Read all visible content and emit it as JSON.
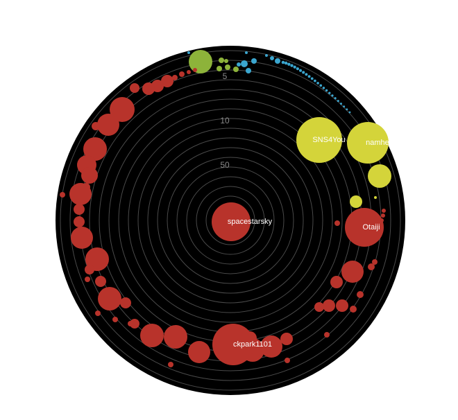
{
  "chart_data": {
    "type": "radial-bubble",
    "title": "",
    "ring_labels": [
      "5",
      "10",
      "50"
    ],
    "colors": {
      "background_disc": "#000000",
      "ring_lines": "#4a4a4a",
      "ring_label_text": "#8a8a8a",
      "red": "#b8332b",
      "yellow": "#d4d43a",
      "green": "#8db33a",
      "blue": "#3ba6cf"
    },
    "center": {
      "label": "spacestarsky",
      "color": "red"
    },
    "labeled_bubbles": [
      {
        "label": "SNS4You",
        "color": "yellow"
      },
      {
        "label": "namhee",
        "color": "yellow"
      },
      {
        "label": "Otaiji",
        "color": "red"
      },
      {
        "label": "ckpark1101",
        "color": "red"
      }
    ]
  }
}
